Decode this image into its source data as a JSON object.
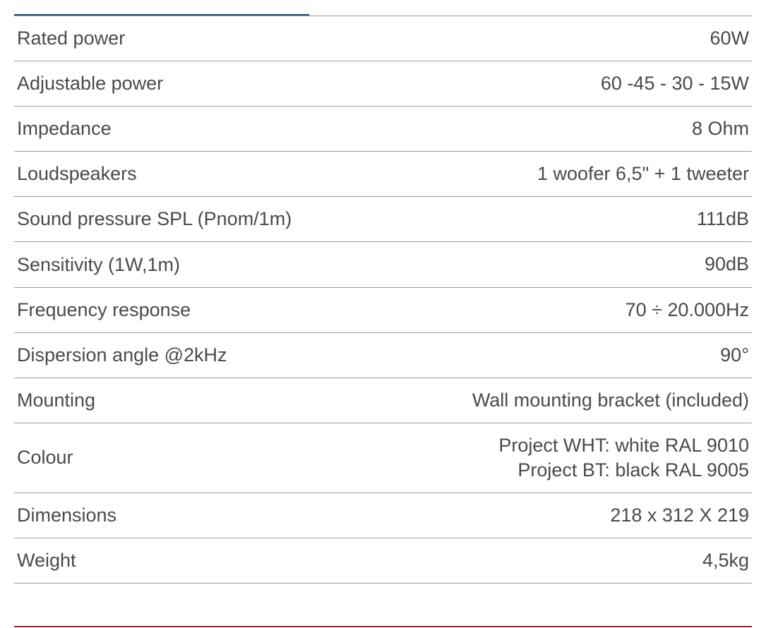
{
  "table": {
    "accent_color_top": "#1b4a7a",
    "accent_color_bottom": "#8a2838",
    "border_color": "#9a9a9a",
    "text_color": "#4a4a4a",
    "font_size": 27,
    "rows": [
      {
        "label": "Rated power",
        "value": "60W"
      },
      {
        "label": "Adjustable power",
        "value": "60 -45 - 30 - 15W"
      },
      {
        "label": "Impedance",
        "value": "8 Ohm"
      },
      {
        "label": "Loudspeakers",
        "value": "1 woofer 6,5\" + 1 tweeter"
      },
      {
        "label": "Sound pressure SPL (Pnom/1m)",
        "value": "111dB"
      },
      {
        "label": "Sensitivity (1W,1m)",
        "value": "90dB"
      },
      {
        "label": "Frequency response",
        "value": "70 ÷ 20.000Hz"
      },
      {
        "label": "Dispersion angle @2kHz",
        "value": "90°"
      },
      {
        "label": "Mounting",
        "value": "Wall mounting bracket (included)"
      },
      {
        "label": "Colour",
        "value": "Project WHT: white RAL 9010\nProject BT: black RAL 9005"
      },
      {
        "label": "Dimensions",
        "value": "218 x 312 X 219"
      },
      {
        "label": "Weight",
        "value": "4,5kg"
      }
    ]
  }
}
